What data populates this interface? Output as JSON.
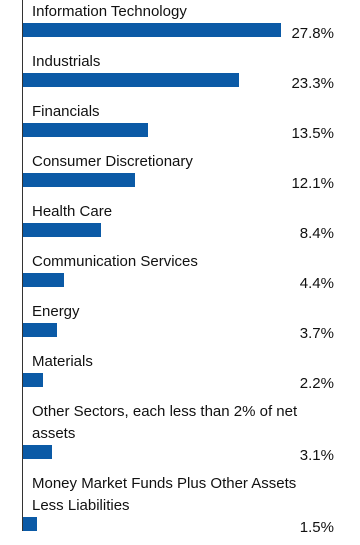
{
  "chart_data": {
    "type": "bar",
    "orientation": "horizontal",
    "categories": [
      "Information Technology",
      "Industrials",
      "Financials",
      "Consumer Discretionary",
      "Health Care",
      "Communication Services",
      "Energy",
      "Materials",
      "Other Sectors, each less than 2% of net assets",
      "Money Market Funds Plus Other Assets Less Liabilities"
    ],
    "values": [
      27.8,
      23.3,
      13.5,
      12.1,
      8.4,
      4.4,
      3.7,
      2.2,
      3.1,
      1.5
    ],
    "value_labels": [
      "27.8%",
      "23.3%",
      "13.5%",
      "12.1%",
      "8.4%",
      "4.4%",
      "3.7%",
      "2.2%",
      "3.1%",
      "1.5%"
    ],
    "color": "#0b5aa6",
    "xlim": [
      0,
      30
    ]
  }
}
